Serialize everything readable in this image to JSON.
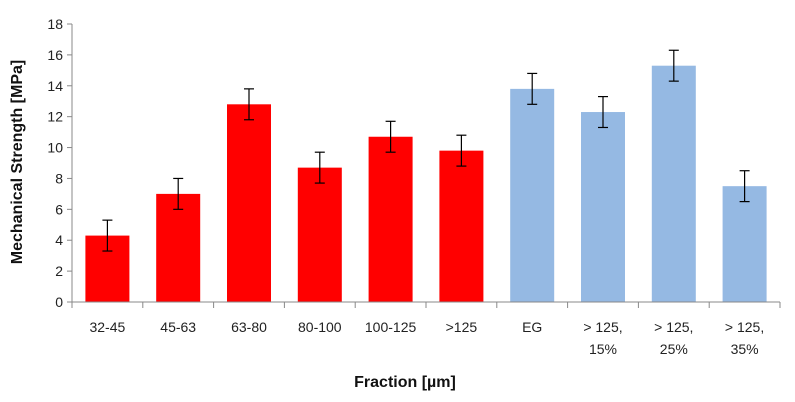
{
  "chart_data": {
    "type": "bar",
    "xlabel": "Fraction [µm]",
    "ylabel": "Mechanical Strength [MPa]",
    "ylim": [
      0,
      18
    ],
    "yticks": [
      0,
      2,
      4,
      6,
      8,
      10,
      12,
      14,
      16,
      18
    ],
    "grid": false,
    "categories": [
      [
        "32-45"
      ],
      [
        "45-63"
      ],
      [
        "63-80"
      ],
      [
        "80-100"
      ],
      [
        "100-125"
      ],
      [
        ">125"
      ],
      [
        "EG"
      ],
      [
        "> 125,",
        "15%"
      ],
      [
        "> 125,",
        "25%"
      ],
      [
        "> 125,",
        "35%"
      ]
    ],
    "values": [
      4.3,
      7.0,
      12.8,
      8.7,
      10.7,
      9.8,
      13.8,
      12.3,
      15.3,
      7.5
    ],
    "errors": [
      1.0,
      1.0,
      1.0,
      1.0,
      1.0,
      1.0,
      1.0,
      1.0,
      1.0,
      1.0
    ],
    "bar_colors": [
      "#ff0000",
      "#ff0000",
      "#ff0000",
      "#ff0000",
      "#ff0000",
      "#ff0000",
      "#95b9e3",
      "#95b9e3",
      "#95b9e3",
      "#95b9e3"
    ]
  }
}
